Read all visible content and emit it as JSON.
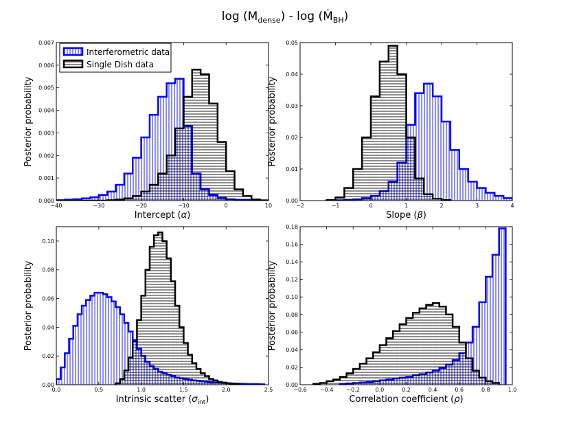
{
  "figure": {
    "title_main": "log (M",
    "title_sub1": "dense",
    "title_mid": ") - log (",
    "title_mdot": "Ṁ",
    "title_sub2": "BH",
    "title_end": ")"
  },
  "legend": {
    "interferometric": "Interferometric data",
    "single_dish": "Single Dish data"
  },
  "colors": {
    "interferometric": "#0000ff",
    "single_dish": "#000000"
  },
  "chart_data": [
    {
      "type": "bar",
      "panel": "intercept",
      "xlabel_main": "Intercept (",
      "xlabel_sym": "α",
      "xlabel_sub": "",
      "xlabel_end": ")",
      "ylabel": "Posterior probability",
      "xlim": [
        -40,
        10
      ],
      "ylim": [
        0,
        0.007
      ],
      "xticks": [
        -40,
        -30,
        -20,
        -10,
        0,
        10
      ],
      "xtick_labels": [
        "−40",
        "−30",
        "−20",
        "−10",
        "0",
        "10"
      ],
      "yticks": [
        0,
        0.001,
        0.002,
        0.003,
        0.004,
        0.005,
        0.006,
        0.007
      ],
      "ytick_labels": [
        "0.000",
        "0.001",
        "0.002",
        "0.003",
        "0.004",
        "0.005",
        "0.006",
        "0.007"
      ],
      "legend_position": "top-left",
      "series": [
        {
          "name": "Interferometric data",
          "color": "#0000ff",
          "hatch": "vertical",
          "bin_edges": [
            -40,
            -38,
            -36,
            -34,
            -32,
            -30,
            -28,
            -26,
            -24,
            -22,
            -20,
            -18,
            -16,
            -14,
            -12,
            -10,
            -8,
            -6,
            -4,
            -2,
            0,
            2,
            4,
            6,
            8,
            10
          ],
          "values": [
            2e-05,
            4e-05,
            6e-05,
            0.0001,
            0.00015,
            0.00025,
            0.0004,
            0.0007,
            0.0012,
            0.0019,
            0.0028,
            0.0038,
            0.0046,
            0.0052,
            0.0054,
            0.0033,
            0.0012,
            0.0005,
            0.00025,
            0.00012,
            6e-05,
            3e-05,
            2e-05,
            1e-05,
            1e-05
          ]
        },
        {
          "name": "Single Dish data",
          "color": "#000000",
          "hatch": "horizontal",
          "bin_edges": [
            -40,
            -38,
            -36,
            -34,
            -32,
            -30,
            -28,
            -26,
            -24,
            -22,
            -20,
            -18,
            -16,
            -14,
            -12,
            -10,
            -8,
            -6,
            -4,
            -2,
            0,
            2,
            4,
            6,
            8,
            10
          ],
          "values": [
            0,
            0,
            0,
            0,
            0,
            0,
            2e-05,
            5e-05,
            0.0001,
            0.0002,
            0.0004,
            0.0007,
            0.0012,
            0.002,
            0.0032,
            0.0046,
            0.0058,
            0.0056,
            0.0043,
            0.0026,
            0.0013,
            0.0005,
            0.0002,
            5e-05,
            1e-05
          ]
        }
      ]
    },
    {
      "type": "bar",
      "panel": "slope",
      "xlabel_main": "Slope (",
      "xlabel_sym": "β",
      "xlabel_sub": "",
      "xlabel_end": ")",
      "ylabel": "Posterior probability",
      "xlim": [
        -2,
        4
      ],
      "ylim": [
        0,
        0.05
      ],
      "xticks": [
        -2,
        -1,
        0,
        1,
        2,
        3,
        4
      ],
      "xtick_labels": [
        "−2",
        "−1",
        "0",
        "1",
        "2",
        "3",
        "4"
      ],
      "yticks": [
        0,
        0.01,
        0.02,
        0.03,
        0.04,
        0.05
      ],
      "ytick_labels": [
        "0.00",
        "0.01",
        "0.02",
        "0.03",
        "0.04",
        "0.05"
      ],
      "series": [
        {
          "name": "Interferometric data",
          "color": "#0000ff",
          "hatch": "vertical",
          "bin_edges": [
            -1.0,
            -0.75,
            -0.5,
            -0.25,
            0.0,
            0.25,
            0.5,
            0.75,
            1.0,
            1.25,
            1.5,
            1.75,
            2.0,
            2.25,
            2.5,
            2.75,
            3.0,
            3.25,
            3.5,
            3.75,
            4.0
          ],
          "values": [
            0.0,
            0.0002,
            0.0004,
            0.0008,
            0.0015,
            0.003,
            0.006,
            0.012,
            0.024,
            0.034,
            0.037,
            0.033,
            0.025,
            0.016,
            0.01,
            0.006,
            0.004,
            0.0025,
            0.0015,
            0.0008
          ]
        },
        {
          "name": "Single Dish data",
          "color": "#000000",
          "hatch": "horizontal",
          "bin_edges": [
            -1.25,
            -1.0,
            -0.75,
            -0.5,
            -0.25,
            0.0,
            0.25,
            0.5,
            0.75,
            1.0,
            1.25,
            1.5,
            1.75,
            2.0,
            2.25
          ],
          "values": [
            0.0002,
            0.001,
            0.004,
            0.01,
            0.02,
            0.033,
            0.044,
            0.049,
            0.04,
            0.02,
            0.007,
            0.002,
            0.0006,
            0.0002
          ]
        }
      ]
    },
    {
      "type": "bar",
      "panel": "scatter",
      "xlabel_main": "Intrinsic scatter (",
      "xlabel_sym": "σ",
      "xlabel_sub": "int",
      "xlabel_end": ")",
      "ylabel": "Posterior probability",
      "xlim": [
        0,
        2.5
      ],
      "ylim": [
        0,
        0.11
      ],
      "xticks": [
        0,
        0.5,
        1.0,
        1.5,
        2.0,
        2.5
      ],
      "xtick_labels": [
        "0.0",
        "0.5",
        "1.0",
        "1.5",
        "2.0",
        "2.5"
      ],
      "yticks": [
        0,
        0.02,
        0.04,
        0.06,
        0.08,
        0.1
      ],
      "ytick_labels": [
        "0.00",
        "0.02",
        "0.04",
        "0.06",
        "0.08",
        "0.10"
      ],
      "series": [
        {
          "name": "Interferometric data",
          "color": "#0000ff",
          "hatch": "vertical",
          "bin_edges": [
            0.0,
            0.05,
            0.1,
            0.15,
            0.2,
            0.25,
            0.3,
            0.35,
            0.4,
            0.45,
            0.5,
            0.55,
            0.6,
            0.65,
            0.7,
            0.75,
            0.8,
            0.85,
            0.9,
            0.95,
            1.0,
            1.05,
            1.1,
            1.15,
            1.2,
            1.25,
            1.3,
            1.35,
            1.4,
            1.45,
            1.5,
            1.55,
            1.6,
            1.65,
            1.7,
            1.75,
            1.8,
            1.85,
            1.9,
            1.95,
            2.0,
            2.05,
            2.1,
            2.15,
            2.2,
            2.25,
            2.3,
            2.35,
            2.4,
            2.45
          ],
          "values": [
            0.004,
            0.012,
            0.022,
            0.032,
            0.041,
            0.049,
            0.055,
            0.059,
            0.062,
            0.064,
            0.064,
            0.063,
            0.061,
            0.058,
            0.054,
            0.049,
            0.043,
            0.037,
            0.031,
            0.025,
            0.02,
            0.016,
            0.013,
            0.011,
            0.009,
            0.008,
            0.007,
            0.006,
            0.005,
            0.0045,
            0.004,
            0.0035,
            0.003,
            0.0027,
            0.0024,
            0.0021,
            0.0018,
            0.0016,
            0.0014,
            0.0012,
            0.001,
            0.0009,
            0.0008,
            0.0007,
            0.0006,
            0.0005,
            0.0005,
            0.0004,
            0.0003
          ]
        },
        {
          "name": "Single Dish data",
          "color": "#000000",
          "hatch": "horizontal",
          "bin_edges": [
            0.7,
            0.75,
            0.8,
            0.85,
            0.9,
            0.95,
            1.0,
            1.05,
            1.1,
            1.15,
            1.2,
            1.25,
            1.3,
            1.35,
            1.4,
            1.45,
            1.5,
            1.55,
            1.6,
            1.65,
            1.7,
            1.75,
            1.8,
            1.85,
            1.9,
            1.95,
            2.0,
            2.05,
            2.1,
            2.15
          ],
          "values": [
            0.001,
            0.004,
            0.01,
            0.019,
            0.03,
            0.045,
            0.062,
            0.08,
            0.096,
            0.104,
            0.106,
            0.1,
            0.088,
            0.072,
            0.055,
            0.04,
            0.029,
            0.021,
            0.015,
            0.011,
            0.008,
            0.006,
            0.004,
            0.003,
            0.002,
            0.0015,
            0.001,
            0.0007,
            0.0004
          ]
        }
      ]
    },
    {
      "type": "bar",
      "panel": "correlation",
      "xlabel_main": "Correlation coefficient (",
      "xlabel_sym": "ρ",
      "xlabel_sub": "",
      "xlabel_end": ")",
      "ylabel": "Posterior probability",
      "xlim": [
        -0.6,
        1.0
      ],
      "ylim": [
        0,
        0.18
      ],
      "xticks": [
        -0.6,
        -0.4,
        -0.2,
        0.0,
        0.2,
        0.4,
        0.6,
        0.8,
        1.0
      ],
      "xtick_labels": [
        "−0.6",
        "−0.4",
        "−0.2",
        "0.0",
        "0.2",
        "0.4",
        "0.6",
        "0.8",
        "1.0"
      ],
      "yticks": [
        0,
        0.02,
        0.04,
        0.06,
        0.08,
        0.1,
        0.12,
        0.14,
        0.16,
        0.18
      ],
      "ytick_labels": [
        "0.00",
        "0.02",
        "0.04",
        "0.06",
        "0.08",
        "0.10",
        "0.12",
        "0.14",
        "0.16",
        "0.18"
      ],
      "series": [
        {
          "name": "Interferometric data",
          "color": "#0000ff",
          "hatch": "vertical",
          "bin_edges": [
            -0.3,
            -0.25,
            -0.2,
            -0.15,
            -0.1,
            -0.05,
            0.0,
            0.05,
            0.1,
            0.15,
            0.2,
            0.25,
            0.3,
            0.35,
            0.4,
            0.45,
            0.5,
            0.55,
            0.6,
            0.65,
            0.7,
            0.75,
            0.8,
            0.85,
            0.9,
            0.95
          ],
          "values": [
            0.001,
            0.0015,
            0.002,
            0.0025,
            0.003,
            0.004,
            0.005,
            0.006,
            0.007,
            0.008,
            0.009,
            0.011,
            0.012,
            0.014,
            0.016,
            0.019,
            0.023,
            0.028,
            0.036,
            0.048,
            0.066,
            0.094,
            0.123,
            0.148,
            0.178
          ]
        },
        {
          "name": "Single Dish data",
          "color": "#000000",
          "hatch": "horizontal",
          "bin_edges": [
            -0.5,
            -0.45,
            -0.4,
            -0.35,
            -0.3,
            -0.25,
            -0.2,
            -0.15,
            -0.1,
            -0.05,
            0.0,
            0.05,
            0.1,
            0.15,
            0.2,
            0.25,
            0.3,
            0.35,
            0.4,
            0.45,
            0.5,
            0.55,
            0.6,
            0.65,
            0.7,
            0.75,
            0.8,
            0.85,
            0.9
          ],
          "values": [
            0.001,
            0.002,
            0.004,
            0.006,
            0.009,
            0.013,
            0.018,
            0.024,
            0.03,
            0.037,
            0.045,
            0.053,
            0.061,
            0.069,
            0.076,
            0.082,
            0.087,
            0.091,
            0.093,
            0.089,
            0.08,
            0.066,
            0.048,
            0.03,
            0.016,
            0.008,
            0.004,
            0.002
          ]
        }
      ]
    }
  ]
}
